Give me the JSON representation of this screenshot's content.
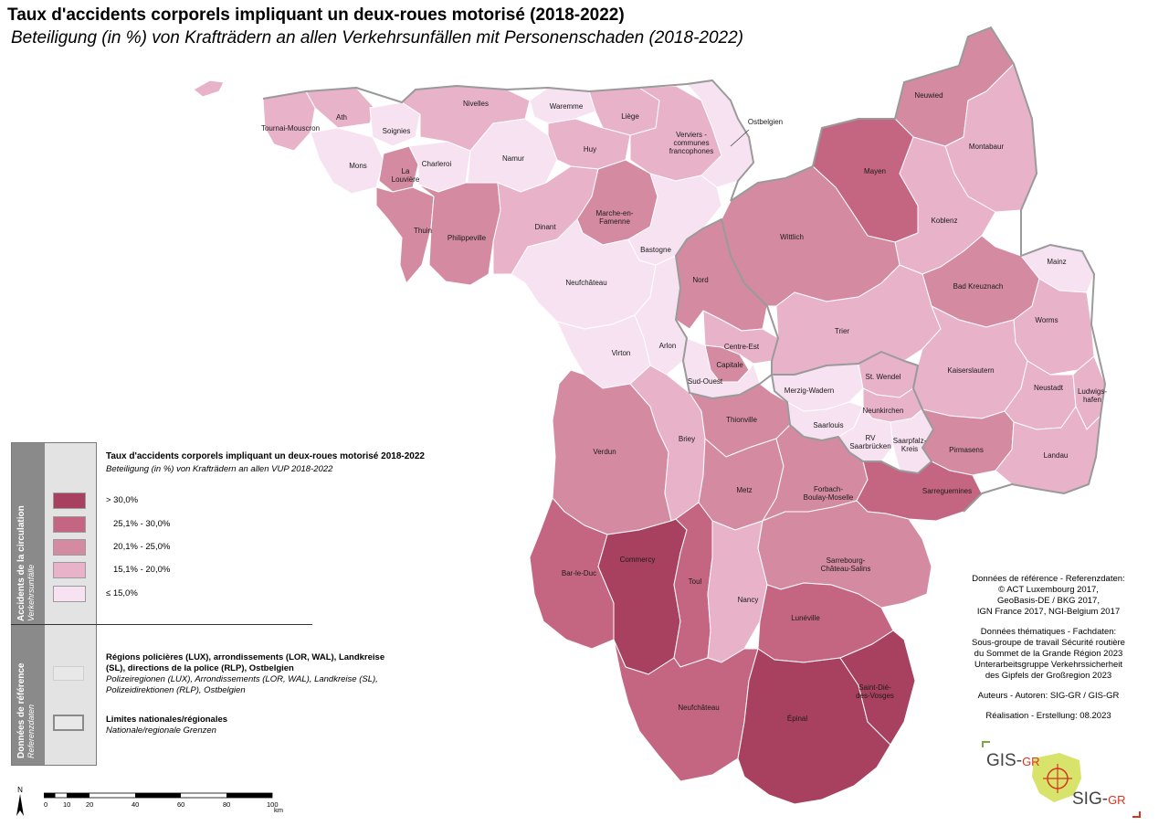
{
  "title": "Taux d'accidents corporels impliquant un deux-roues motorisé (2018-2022)",
  "subtitle": "Beteiligung (in %) von Krafträdern an allen Verkehrsunfällen mit Personenschaden (2018-2022)",
  "colors": {
    "c1": "#f7e2f1",
    "c2": "#e8b2c8",
    "c3": "#d48ba2",
    "c4": "#c46682",
    "c5": "#a8415f",
    "border": "#9a9a9a",
    "internal": "#ffffff"
  },
  "legend": {
    "side_main": "Accidents de la circulation",
    "side_sub": "Verkehrsunfälle",
    "title": "Taux d'accidents corporels impliquant un deux-roues motorisé 2018-2022",
    "subtitle": "Beteiligung (in %) von Krafträdern an allen VUP 2018-2022",
    "classes": [
      {
        "label": "> 30,0%",
        "color": "#a8415f"
      },
      {
        "label": "25,1% - 30,0%",
        "color": "#c46682"
      },
      {
        "label": "20,1% - 25,0%",
        "color": "#d48ba2"
      },
      {
        "label": "15,1% - 20,0%",
        "color": "#e8b2c8"
      },
      {
        "label": "≤ 15,0%",
        "color": "#f7e2f1"
      }
    ],
    "ref_side_main": "Données de référence",
    "ref_side_sub": "Referenzdaten",
    "ref_regions_bold": "Régions policières (LUX), arrondissements (LOR, WAL), Landkreise (SL), directions de la police (RLP), Ostbelgien",
    "ref_regions_italic": "Polizeiregionen (LUX), Arrondissements (LOR, WAL), Landkreise (SL), Polizeidirektionen (RLP), Ostbelgien",
    "ref_limits_bold": "Limites nationales/régionales",
    "ref_limits_italic": "Nationale/regionale Grenzen"
  },
  "credits": {
    "ref_head": "Données de référence - Referenzdaten:",
    "ref_1": "© ACT Luxembourg 2017,",
    "ref_2": "GeoBasis-DE / BKG 2017,",
    "ref_3": "IGN France 2017, NGI-Belgium 2017",
    "them_head": "Données thématiques - Fachdaten:",
    "them_1": "Sous-groupe de travail Sécurité routière",
    "them_2": "du Sommet de la Grande Région 2023",
    "them_3": "Unterarbeitsgruppe Verkehrssicherheit",
    "them_4": "des Gipfels der Großregion 2023",
    "authors": "Auteurs - Autoren: SIG-GR / GIS-GR",
    "realisation": "Réalisation - Erstellung: 08.2023"
  },
  "scale": {
    "ticks": [
      "0",
      "10",
      "20",
      "40",
      "60",
      "80",
      "100"
    ],
    "unit": "km",
    "north": "N"
  },
  "logo": {
    "gis": "GIS-",
    "gis_gr": "GR",
    "sig": "SIG-",
    "sig_gr": "GR"
  },
  "regions": [
    {
      "name": "Tournai-Mouscron",
      "cls": 2
    },
    {
      "name": "Ath",
      "cls": 2
    },
    {
      "name": "Soignies",
      "cls": 1
    },
    {
      "name": "Mons",
      "cls": 1
    },
    {
      "name": "La Louvière",
      "cls": 3
    },
    {
      "name": "Charleroi",
      "cls": 1
    },
    {
      "name": "Nivelles",
      "cls": 2
    },
    {
      "name": "Namur",
      "cls": 1
    },
    {
      "name": "Waremme",
      "cls": 1
    },
    {
      "name": "Liège",
      "cls": 2
    },
    {
      "name": "Huy",
      "cls": 2
    },
    {
      "name": "Verviers - communes francophones",
      "cls": 2
    },
    {
      "name": "Ostbelgien",
      "cls": 1
    },
    {
      "name": "Thuin",
      "cls": 3
    },
    {
      "name": "Philippeville",
      "cls": 3
    },
    {
      "name": "Dinant",
      "cls": 2
    },
    {
      "name": "Marche-en-Famenne",
      "cls": 3
    },
    {
      "name": "Bastogne",
      "cls": 1
    },
    {
      "name": "Neufchâteau",
      "cls": 1
    },
    {
      "name": "Virton",
      "cls": 1
    },
    {
      "name": "Arlon",
      "cls": 1
    },
    {
      "name": "Nord",
      "cls": 3
    },
    {
      "name": "Centre-Est",
      "cls": 2
    },
    {
      "name": "Capitale",
      "cls": 3
    },
    {
      "name": "Sud-Ouest",
      "cls": 1
    },
    {
      "name": "Neuwied",
      "cls": 3
    },
    {
      "name": "Montabaur",
      "cls": 2
    },
    {
      "name": "Mayen",
      "cls": 4
    },
    {
      "name": "Koblenz",
      "cls": 2
    },
    {
      "name": "Wittlich",
      "cls": 3
    },
    {
      "name": "Mainz",
      "cls": 1
    },
    {
      "name": "Bad Kreuznach",
      "cls": 3
    },
    {
      "name": "Trier",
      "cls": 2
    },
    {
      "name": "Worms",
      "cls": 2
    },
    {
      "name": "Kaiserslautern",
      "cls": 2
    },
    {
      "name": "Neustadt",
      "cls": 2
    },
    {
      "name": "Ludwigshafen",
      "cls": 2
    },
    {
      "name": "Merzig-Wadern",
      "cls": 1
    },
    {
      "name": "St. Wendel",
      "cls": 2
    },
    {
      "name": "Neunkirchen",
      "cls": 2
    },
    {
      "name": "Saarlouis",
      "cls": 1
    },
    {
      "name": "RV Saarbrücken",
      "cls": 1
    },
    {
      "name": "Saarpfalz-Kreis",
      "cls": 1
    },
    {
      "name": "Pirmasens",
      "cls": 3
    },
    {
      "name": "Landau",
      "cls": 2
    },
    {
      "name": "Verdun",
      "cls": 3
    },
    {
      "name": "Briey",
      "cls": 2
    },
    {
      "name": "Thionville",
      "cls": 3
    },
    {
      "name": "Metz",
      "cls": 3
    },
    {
      "name": "Forbach-Boulay-Moselle",
      "cls": 3
    },
    {
      "name": "Sarreguemines",
      "cls": 4
    },
    {
      "name": "Bar-le-Duc",
      "cls": 4
    },
    {
      "name": "Commercy",
      "cls": 5
    },
    {
      "name": "Toul",
      "cls": 4
    },
    {
      "name": "Nancy",
      "cls": 2
    },
    {
      "name": "Sarrebourg-Château-Salins",
      "cls": 3
    },
    {
      "name": "Lunéville",
      "cls": 4
    },
    {
      "name": "Neufchâteau",
      "cls": 4
    },
    {
      "name": "Épinal",
      "cls": 5
    },
    {
      "name": "Saint-Dié-des-Vosges",
      "cls": 5
    }
  ]
}
